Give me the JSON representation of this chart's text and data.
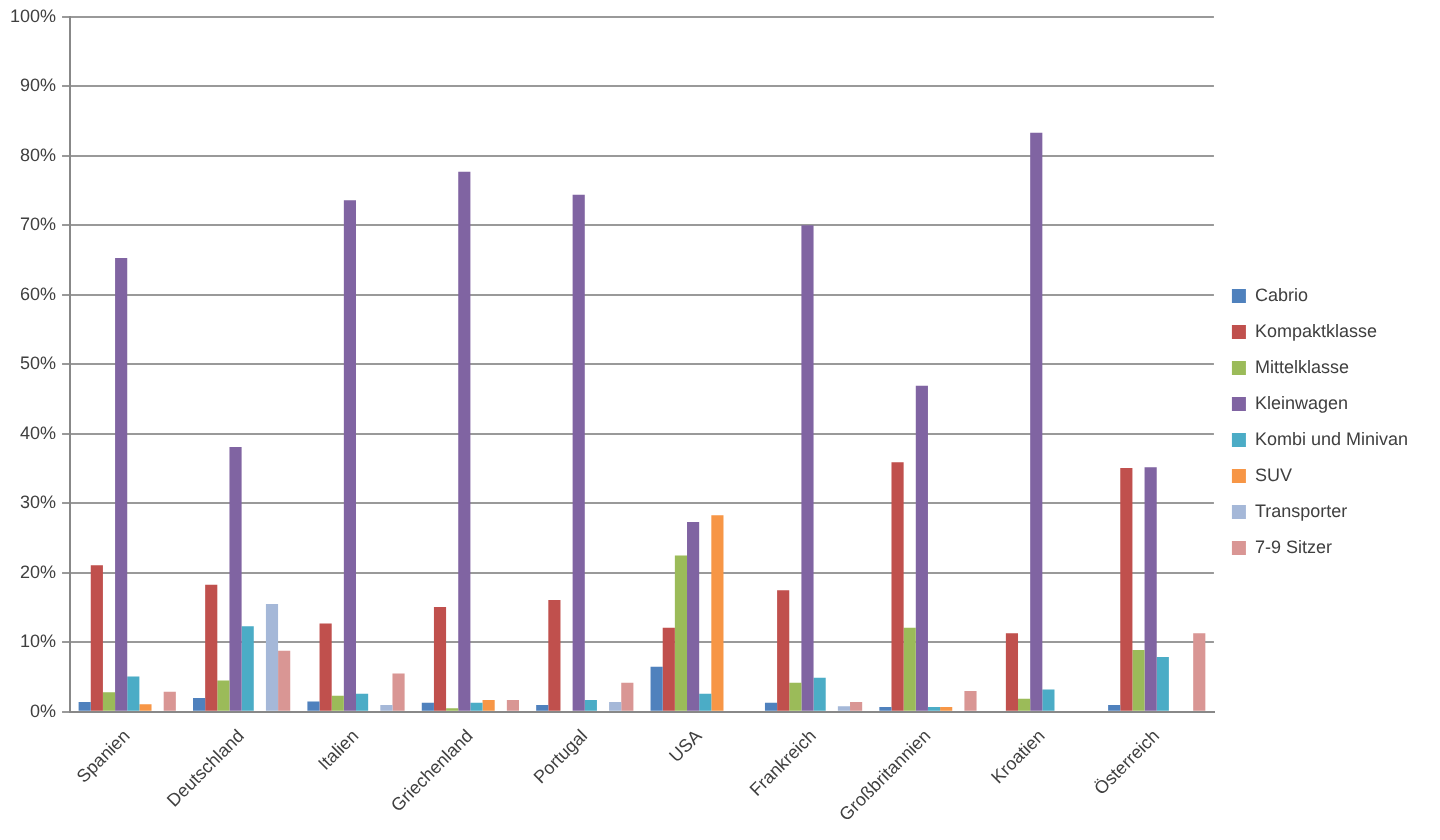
{
  "chart_data": {
    "type": "bar",
    "categories": [
      "Spanien",
      "Deutschland",
      "Italien",
      "Griechenland",
      "Portugal",
      "USA",
      "Frankreich",
      "Großbritannien",
      "Kroatien",
      "Österreich"
    ],
    "series": [
      {
        "name": "Cabrio",
        "color": "#4f81bd",
        "values": [
          1.4,
          2.0,
          1.5,
          1.3,
          1.0,
          6.5,
          1.3,
          0.7,
          0,
          1.0
        ]
      },
      {
        "name": "Kompaktklasse",
        "color": "#c0504d",
        "values": [
          21.1,
          18.3,
          12.7,
          15.1,
          16.1,
          12.1,
          17.5,
          35.9,
          11.3,
          35.1
        ]
      },
      {
        "name": "Mittelklasse",
        "color": "#9bbb59",
        "values": [
          2.8,
          4.5,
          2.3,
          0.5,
          null,
          22.5,
          4.2,
          12.1,
          1.9,
          8.9
        ]
      },
      {
        "name": "Kleinwagen",
        "color": "#8064a2",
        "values": [
          65.3,
          38.1,
          73.6,
          77.7,
          74.4,
          27.3,
          70.0,
          46.9,
          83.3,
          35.2
        ]
      },
      {
        "name": "Kombi und Minivan",
        "color": "#4bacc6",
        "values": [
          5.1,
          12.3,
          2.6,
          1.3,
          1.7,
          2.6,
          4.9,
          0.7,
          3.2,
          7.9
        ]
      },
      {
        "name": "SUV",
        "color": "#f79646",
        "values": [
          1.1,
          null,
          null,
          1.7,
          0,
          28.3,
          0,
          0.7,
          0,
          0
        ]
      },
      {
        "name": "Transporter",
        "color": "#a5b8d8",
        "values": [
          0,
          15.5,
          1.0,
          0,
          1.4,
          0,
          0.8,
          0,
          0,
          0
        ]
      },
      {
        "name": "7-9 Sitzer",
        "color": "#d99694",
        "values": [
          2.9,
          8.8,
          5.5,
          1.7,
          4.2,
          0,
          1.4,
          3.0,
          0,
          11.3
        ]
      }
    ],
    "ylim": [
      0,
      100
    ],
    "yticks": [
      {
        "value": 0,
        "label": "0%"
      },
      {
        "value": 10,
        "label": "10%"
      },
      {
        "value": 20,
        "label": "20%"
      },
      {
        "value": 30,
        "label": "30%"
      },
      {
        "value": 40,
        "label": "40%"
      },
      {
        "value": 50,
        "label": "50%"
      },
      {
        "value": 60,
        "label": "60%"
      },
      {
        "value": 70,
        "label": "70%"
      },
      {
        "value": 80,
        "label": "80%"
      },
      {
        "value": 90,
        "label": "90%"
      },
      {
        "value": 100,
        "label": "100%"
      }
    ],
    "grid": "y",
    "legend": "right"
  }
}
